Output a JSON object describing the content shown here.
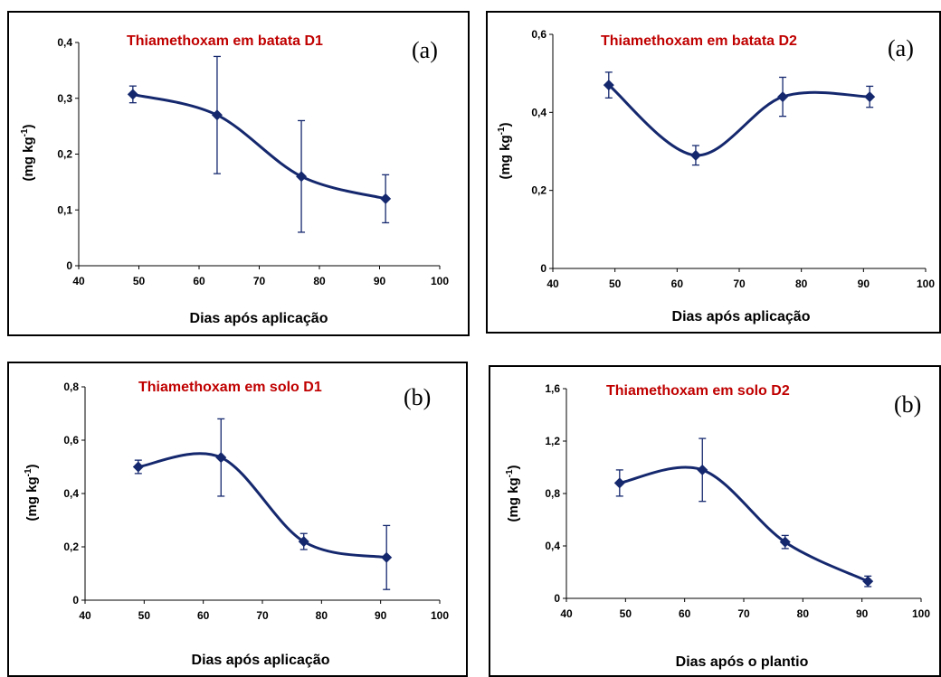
{
  "chart_data": [
    {
      "type": "line",
      "title": "Thiamethoxam em batata D1",
      "panel_label": "(a)",
      "xlabel": "Dias após aplicação",
      "ylabel": "(mg kg-1)",
      "ylabel_base": "(mg kg",
      "ylabel_sup": "-1",
      "ylabel_tail": ")",
      "xlim": [
        40,
        100
      ],
      "ylim": [
        0,
        0.4
      ],
      "xticks": [
        40,
        50,
        60,
        70,
        80,
        90,
        100
      ],
      "yticks": [
        0,
        0.1,
        0.2,
        0.3,
        0.4
      ],
      "xtick_labels": [
        "40",
        "50",
        "60",
        "70",
        "80",
        "90",
        "100"
      ],
      "ytick_labels": [
        "0",
        "0,1",
        "0,2",
        "0,3",
        "0,4"
      ],
      "x": [
        49,
        63,
        77,
        91
      ],
      "y": [
        0.307,
        0.27,
        0.16,
        0.12
      ],
      "err": [
        0.015,
        0.105,
        0.1,
        0.043
      ]
    },
    {
      "type": "line",
      "title": "Thiamethoxam em batata D2",
      "panel_label": "(a)",
      "xlabel": "Dias após aplicação",
      "ylabel": "(mg kg-1)",
      "ylabel_base": "(mg kg",
      "ylabel_sup": "-1",
      "ylabel_tail": ")",
      "xlim": [
        40,
        100
      ],
      "ylim": [
        0,
        0.6
      ],
      "xticks": [
        40,
        50,
        60,
        70,
        80,
        90,
        100
      ],
      "yticks": [
        0,
        0.2,
        0.4,
        0.6
      ],
      "xtick_labels": [
        "40",
        "50",
        "60",
        "70",
        "80",
        "90",
        "100"
      ],
      "ytick_labels": [
        "0",
        "0,2",
        "0,4",
        "0,6"
      ],
      "x": [
        49,
        63,
        77,
        91
      ],
      "y": [
        0.47,
        0.29,
        0.44,
        0.44
      ],
      "err": [
        0.033,
        0.025,
        0.05,
        0.027
      ]
    },
    {
      "type": "line",
      "title": "Thiamethoxam em solo D1",
      "panel_label": "(b)",
      "xlabel": "Dias após aplicação",
      "ylabel": "(mg kg-1)",
      "ylabel_base": "(mg kg",
      "ylabel_sup": "-1",
      "ylabel_tail": ")",
      "xlim": [
        40,
        100
      ],
      "ylim": [
        0,
        0.8
      ],
      "xticks": [
        40,
        50,
        60,
        70,
        80,
        90,
        100
      ],
      "yticks": [
        0,
        0.2,
        0.4,
        0.6,
        0.8
      ],
      "xtick_labels": [
        "40",
        "50",
        "60",
        "70",
        "80",
        "90",
        "100"
      ],
      "ytick_labels": [
        "0",
        "0,2",
        "0,4",
        "0,6",
        "0,8"
      ],
      "x": [
        49,
        63,
        77,
        91
      ],
      "y": [
        0.5,
        0.535,
        0.22,
        0.16
      ],
      "err": [
        0.025,
        0.145,
        0.03,
        0.12
      ]
    },
    {
      "type": "line",
      "title": "Thiamethoxam em solo D2",
      "panel_label": "(b)",
      "xlabel": "Dias após o plantio",
      "ylabel": "(mg kg-1)",
      "ylabel_base": "(mg kg",
      "ylabel_sup": "-1",
      "ylabel_tail": ")",
      "xlim": [
        40,
        100
      ],
      "ylim": [
        0,
        1.6
      ],
      "xticks": [
        40,
        50,
        60,
        70,
        80,
        90,
        100
      ],
      "yticks": [
        0,
        0.4,
        0.8,
        1.2,
        1.6
      ],
      "xtick_labels": [
        "40",
        "50",
        "60",
        "70",
        "80",
        "90",
        "100"
      ],
      "ytick_labels": [
        "0",
        "0,4",
        "0,8",
        "1,2",
        "1,6"
      ],
      "x": [
        49,
        63,
        77,
        91
      ],
      "y": [
        0.88,
        0.98,
        0.43,
        0.13
      ],
      "err": [
        0.1,
        0.24,
        0.05,
        0.04
      ]
    }
  ],
  "colors": {
    "title": "#c00000",
    "series": "#15286e"
  }
}
